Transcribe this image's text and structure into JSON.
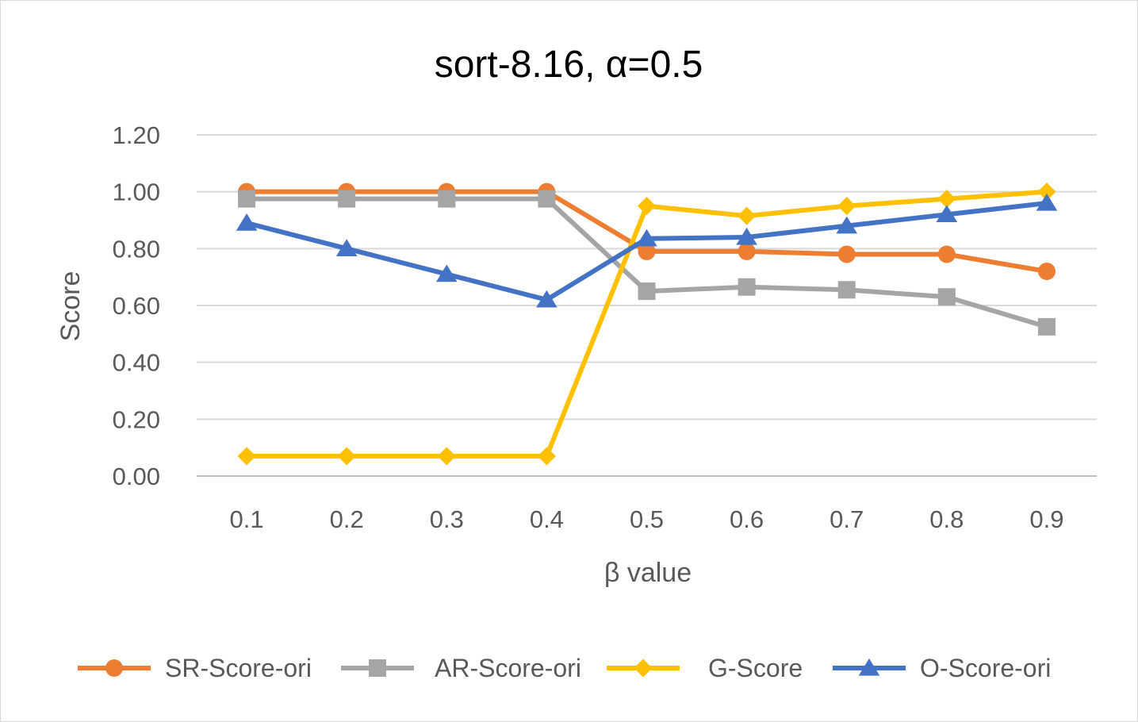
{
  "chart_data": {
    "type": "line",
    "title": "sort-8.16, α=0.5",
    "xlabel": "β value",
    "ylabel": "Score",
    "ylim": [
      0,
      1.2
    ],
    "yticks": [
      "0.00",
      "0.20",
      "0.40",
      "0.60",
      "0.80",
      "1.00",
      "1.20"
    ],
    "categories": [
      "0.1",
      "0.2",
      "0.3",
      "0.4",
      "0.5",
      "0.6",
      "0.7",
      "0.8",
      "0.9"
    ],
    "grid": true,
    "legend_position": "bottom",
    "series": [
      {
        "name": "SR-Score-ori",
        "color": "#ED7D31",
        "marker": "circle",
        "values": [
          1.0,
          1.0,
          1.0,
          1.0,
          0.79,
          0.79,
          0.78,
          0.78,
          0.72
        ]
      },
      {
        "name": "AR-Score-ori",
        "color": "#A5A5A5",
        "marker": "square",
        "values": [
          0.975,
          0.975,
          0.975,
          0.975,
          0.65,
          0.665,
          0.655,
          0.63,
          0.525
        ]
      },
      {
        "name": "G-Score",
        "color": "#FFC000",
        "marker": "diamond",
        "values": [
          0.07,
          0.07,
          0.07,
          0.07,
          0.95,
          0.915,
          0.95,
          0.975,
          1.0
        ]
      },
      {
        "name": "O-Score-ori",
        "color": "#4472C4",
        "marker": "triangle",
        "values": [
          0.89,
          0.8,
          0.71,
          0.62,
          0.835,
          0.84,
          0.88,
          0.92,
          0.96
        ]
      }
    ]
  }
}
